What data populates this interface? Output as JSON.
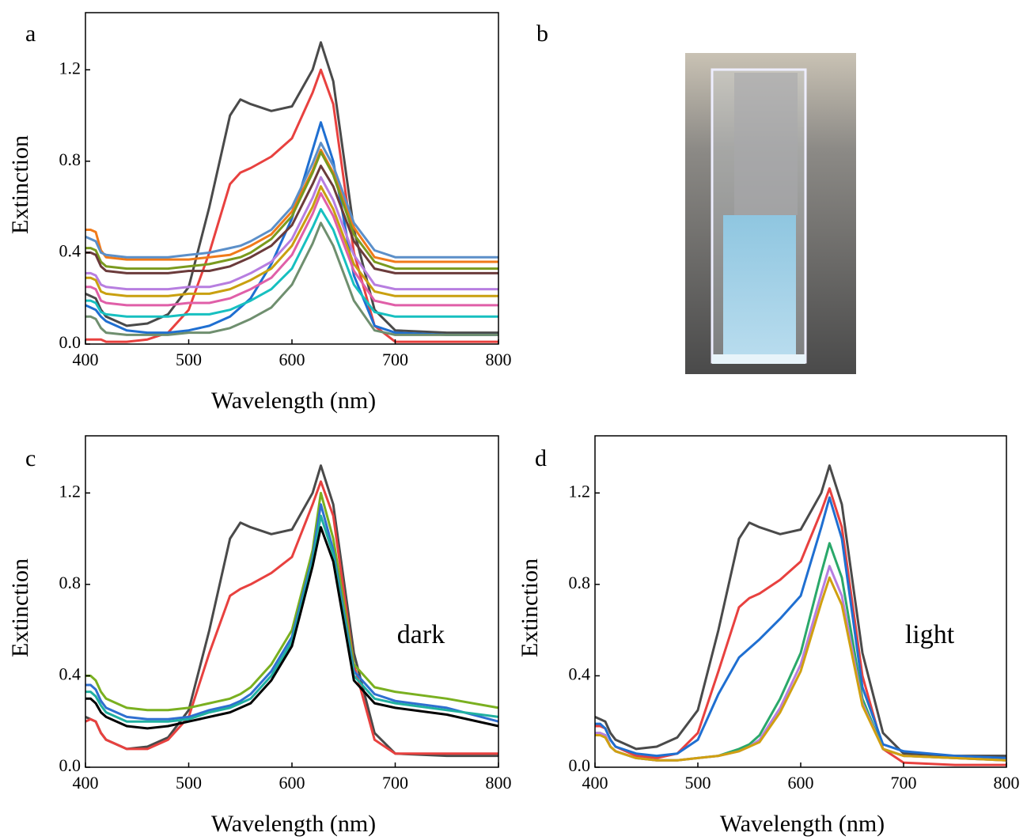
{
  "chart_data": [
    {
      "type": "line",
      "panel_label": "a",
      "x_label": "Wavelength (nm)",
      "y_label": "Extinction",
      "x": [
        400,
        405,
        410,
        415,
        420,
        440,
        460,
        480,
        500,
        520,
        540,
        550,
        560,
        580,
        600,
        620,
        628,
        640,
        660,
        680,
        700,
        750,
        800
      ],
      "xlim": [
        400,
        800
      ],
      "xticks": [
        400,
        500,
        600,
        700,
        800
      ],
      "ylim": [
        0,
        1.45
      ],
      "yticks": [
        {
          "value": 0,
          "label": "0.0"
        },
        {
          "value": 0.4,
          "label": "0.4"
        },
        {
          "value": 0.8,
          "label": "0.8"
        },
        {
          "value": 1.2,
          "label": "1.2"
        }
      ],
      "series": [
        {
          "color": "#4a4a4a",
          "values": [
            0.22,
            0.21,
            0.2,
            0.15,
            0.12,
            0.08,
            0.09,
            0.13,
            0.25,
            0.6,
            1.0,
            1.07,
            1.05,
            1.02,
            1.04,
            1.2,
            1.32,
            1.15,
            0.5,
            0.15,
            0.06,
            0.05,
            0.05
          ]
        },
        {
          "color": "#e8413f",
          "values": [
            0.02,
            0.02,
            0.02,
            0.02,
            0.01,
            0.01,
            0.02,
            0.05,
            0.15,
            0.4,
            0.7,
            0.75,
            0.77,
            0.82,
            0.9,
            1.1,
            1.2,
            1.05,
            0.4,
            0.08,
            0.01,
            0.01,
            0.01
          ]
        },
        {
          "color": "#1f6fd1",
          "values": [
            0.17,
            0.16,
            0.15,
            0.12,
            0.1,
            0.06,
            0.05,
            0.05,
            0.06,
            0.08,
            0.12,
            0.16,
            0.2,
            0.35,
            0.55,
            0.85,
            0.97,
            0.8,
            0.3,
            0.08,
            0.05,
            0.04,
            0.04
          ]
        },
        {
          "color": "#f07a1a",
          "values": [
            0.5,
            0.5,
            0.49,
            0.41,
            0.38,
            0.37,
            0.37,
            0.37,
            0.37,
            0.38,
            0.39,
            0.41,
            0.43,
            0.48,
            0.58,
            0.76,
            0.85,
            0.75,
            0.51,
            0.38,
            0.36,
            0.36,
            0.36
          ]
        },
        {
          "color": "#5b8fc9",
          "values": [
            0.47,
            0.46,
            0.45,
            0.4,
            0.39,
            0.38,
            0.38,
            0.38,
            0.39,
            0.4,
            0.42,
            0.43,
            0.45,
            0.5,
            0.6,
            0.79,
            0.88,
            0.78,
            0.53,
            0.41,
            0.38,
            0.38,
            0.38
          ]
        },
        {
          "color": "#7a9a1e",
          "values": [
            0.42,
            0.42,
            0.41,
            0.36,
            0.34,
            0.33,
            0.33,
            0.33,
            0.34,
            0.35,
            0.37,
            0.38,
            0.4,
            0.46,
            0.56,
            0.75,
            0.84,
            0.74,
            0.48,
            0.36,
            0.33,
            0.33,
            0.33
          ]
        },
        {
          "color": "#6b3b3b",
          "values": [
            0.4,
            0.4,
            0.39,
            0.34,
            0.32,
            0.31,
            0.31,
            0.31,
            0.32,
            0.32,
            0.34,
            0.36,
            0.38,
            0.43,
            0.52,
            0.7,
            0.78,
            0.69,
            0.45,
            0.33,
            0.31,
            0.31,
            0.31
          ]
        },
        {
          "color": "#b77ee0",
          "values": [
            0.31,
            0.31,
            0.3,
            0.26,
            0.25,
            0.24,
            0.24,
            0.24,
            0.25,
            0.25,
            0.27,
            0.29,
            0.31,
            0.36,
            0.46,
            0.64,
            0.73,
            0.63,
            0.39,
            0.26,
            0.24,
            0.24,
            0.24
          ]
        },
        {
          "color": "#c9a010",
          "values": [
            0.29,
            0.29,
            0.28,
            0.23,
            0.22,
            0.21,
            0.21,
            0.21,
            0.22,
            0.22,
            0.24,
            0.26,
            0.28,
            0.33,
            0.43,
            0.6,
            0.69,
            0.59,
            0.35,
            0.23,
            0.21,
            0.21,
            0.21
          ]
        },
        {
          "color": "#e05fa8",
          "values": [
            0.25,
            0.25,
            0.24,
            0.19,
            0.18,
            0.17,
            0.17,
            0.17,
            0.18,
            0.18,
            0.2,
            0.22,
            0.24,
            0.29,
            0.39,
            0.57,
            0.66,
            0.56,
            0.32,
            0.19,
            0.17,
            0.17,
            0.17
          ]
        },
        {
          "color": "#17c0c0",
          "values": [
            0.19,
            0.19,
            0.18,
            0.14,
            0.13,
            0.12,
            0.12,
            0.12,
            0.13,
            0.13,
            0.15,
            0.17,
            0.19,
            0.24,
            0.33,
            0.51,
            0.59,
            0.5,
            0.26,
            0.14,
            0.12,
            0.12,
            0.12
          ]
        },
        {
          "color": "#6f8f6f",
          "values": [
            0.12,
            0.12,
            0.11,
            0.07,
            0.05,
            0.04,
            0.04,
            0.04,
            0.05,
            0.05,
            0.07,
            0.09,
            0.11,
            0.16,
            0.26,
            0.44,
            0.53,
            0.43,
            0.19,
            0.06,
            0.04,
            0.04,
            0.04
          ]
        }
      ]
    },
    {
      "type": "line",
      "panel_label": "c",
      "x_label": "Wavelength (nm)",
      "y_label": "Extinction",
      "annotation": "dark",
      "x": [
        400,
        405,
        410,
        415,
        420,
        440,
        460,
        480,
        500,
        520,
        540,
        550,
        560,
        580,
        600,
        620,
        628,
        640,
        660,
        680,
        700,
        750,
        800
      ],
      "xlim": [
        400,
        800
      ],
      "xticks": [
        400,
        500,
        600,
        700,
        800
      ],
      "ylim": [
        0,
        1.45
      ],
      "yticks": [
        {
          "value": 0,
          "label": "0.0"
        },
        {
          "value": 0.4,
          "label": "0.4"
        },
        {
          "value": 0.8,
          "label": "0.8"
        },
        {
          "value": 1.2,
          "label": "1.2"
        }
      ],
      "series": [
        {
          "color": "#4a4a4a",
          "values": [
            0.22,
            0.21,
            0.2,
            0.15,
            0.12,
            0.08,
            0.09,
            0.13,
            0.25,
            0.6,
            1.0,
            1.07,
            1.05,
            1.02,
            1.04,
            1.2,
            1.32,
            1.15,
            0.5,
            0.15,
            0.06,
            0.05,
            0.05
          ]
        },
        {
          "color": "#e8413f",
          "values": [
            0.2,
            0.21,
            0.2,
            0.15,
            0.12,
            0.08,
            0.08,
            0.12,
            0.22,
            0.5,
            0.75,
            0.78,
            0.8,
            0.85,
            0.92,
            1.15,
            1.25,
            1.1,
            0.45,
            0.12,
            0.06,
            0.06,
            0.06
          ]
        },
        {
          "color": "#7ab020",
          "values": [
            0.4,
            0.4,
            0.38,
            0.33,
            0.3,
            0.26,
            0.25,
            0.25,
            0.26,
            0.28,
            0.3,
            0.32,
            0.35,
            0.45,
            0.6,
            0.95,
            1.2,
            1.0,
            0.45,
            0.35,
            0.33,
            0.3,
            0.26
          ]
        },
        {
          "color": "#2f6fd0",
          "values": [
            0.36,
            0.36,
            0.34,
            0.29,
            0.26,
            0.22,
            0.21,
            0.21,
            0.22,
            0.25,
            0.27,
            0.29,
            0.32,
            0.42,
            0.57,
            0.92,
            1.15,
            0.95,
            0.42,
            0.32,
            0.29,
            0.26,
            0.2
          ]
        },
        {
          "color": "#20b0a0",
          "values": [
            0.33,
            0.33,
            0.31,
            0.27,
            0.24,
            0.2,
            0.2,
            0.2,
            0.21,
            0.24,
            0.26,
            0.28,
            0.3,
            0.4,
            0.55,
            0.9,
            1.1,
            0.93,
            0.4,
            0.3,
            0.28,
            0.25,
            0.22
          ]
        },
        {
          "color": "#000000",
          "values": [
            0.3,
            0.3,
            0.28,
            0.24,
            0.22,
            0.18,
            0.17,
            0.18,
            0.2,
            0.22,
            0.24,
            0.26,
            0.28,
            0.38,
            0.53,
            0.88,
            1.05,
            0.9,
            0.38,
            0.28,
            0.26,
            0.23,
            0.18
          ]
        }
      ]
    },
    {
      "type": "line",
      "panel_label": "d",
      "x_label": "Wavelength (nm)",
      "y_label": "Extinction",
      "annotation": "light",
      "x": [
        400,
        405,
        410,
        415,
        420,
        440,
        460,
        480,
        500,
        520,
        540,
        550,
        560,
        580,
        600,
        620,
        628,
        640,
        660,
        680,
        700,
        750,
        800
      ],
      "xlim": [
        400,
        800
      ],
      "xticks": [
        400,
        500,
        600,
        700,
        800
      ],
      "ylim": [
        0,
        1.45
      ],
      "yticks": [
        {
          "value": 0,
          "label": "0.0"
        },
        {
          "value": 0.4,
          "label": "0.4"
        },
        {
          "value": 0.8,
          "label": "0.8"
        },
        {
          "value": 1.2,
          "label": "1.2"
        }
      ],
      "series": [
        {
          "color": "#4a4a4a",
          "values": [
            0.22,
            0.21,
            0.2,
            0.15,
            0.12,
            0.08,
            0.09,
            0.13,
            0.25,
            0.6,
            1.0,
            1.07,
            1.05,
            1.02,
            1.04,
            1.2,
            1.32,
            1.15,
            0.5,
            0.15,
            0.06,
            0.05,
            0.05
          ]
        },
        {
          "color": "#e8413f",
          "values": [
            0.18,
            0.18,
            0.17,
            0.12,
            0.09,
            0.05,
            0.04,
            0.06,
            0.15,
            0.42,
            0.7,
            0.74,
            0.76,
            0.82,
            0.9,
            1.12,
            1.22,
            1.05,
            0.4,
            0.08,
            0.02,
            0.01,
            0.01
          ]
        },
        {
          "color": "#1f6fd1",
          "values": [
            0.19,
            0.19,
            0.17,
            0.12,
            0.09,
            0.06,
            0.05,
            0.06,
            0.12,
            0.32,
            0.48,
            0.52,
            0.56,
            0.65,
            0.75,
            1.05,
            1.18,
            1.0,
            0.35,
            0.1,
            0.07,
            0.05,
            0.04
          ]
        },
        {
          "color": "#2aa86a",
          "values": [
            0.15,
            0.15,
            0.14,
            0.09,
            0.07,
            0.04,
            0.03,
            0.03,
            0.04,
            0.05,
            0.08,
            0.1,
            0.14,
            0.3,
            0.5,
            0.85,
            0.98,
            0.83,
            0.3,
            0.08,
            0.05,
            0.04,
            0.03
          ]
        },
        {
          "color": "#b77ee0",
          "values": [
            0.15,
            0.15,
            0.14,
            0.09,
            0.07,
            0.04,
            0.03,
            0.03,
            0.04,
            0.05,
            0.07,
            0.09,
            0.12,
            0.26,
            0.45,
            0.76,
            0.88,
            0.75,
            0.28,
            0.08,
            0.05,
            0.04,
            0.03
          ]
        },
        {
          "color": "#d0a010",
          "values": [
            0.14,
            0.14,
            0.13,
            0.09,
            0.07,
            0.04,
            0.03,
            0.03,
            0.04,
            0.05,
            0.07,
            0.09,
            0.11,
            0.24,
            0.42,
            0.72,
            0.83,
            0.71,
            0.27,
            0.08,
            0.05,
            0.04,
            0.03
          ]
        }
      ]
    }
  ],
  "photo": {
    "panel_label": "b"
  }
}
